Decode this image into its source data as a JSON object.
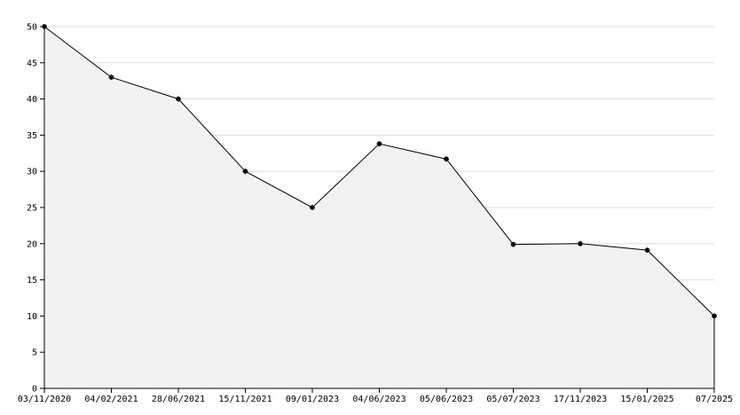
{
  "chart_data": {
    "type": "area",
    "categories": [
      "03/11/2020",
      "04/02/2021",
      "28/06/2021",
      "15/11/2021",
      "09/01/2023",
      "04/06/2023",
      "05/06/2023",
      "05/07/2023",
      "17/11/2023",
      "15/01/2025",
      "07/2025"
    ],
    "values": [
      50,
      43,
      40,
      30,
      25,
      33.8,
      31.7,
      19.9,
      20,
      19.1,
      10
    ],
    "color": "#000000",
    "fill_color": "#f2f2f2",
    "ylim": [
      0,
      50
    ],
    "yticks": [
      0,
      5,
      10,
      15,
      20,
      25,
      30,
      35,
      40,
      45,
      50
    ],
    "grid": true
  }
}
